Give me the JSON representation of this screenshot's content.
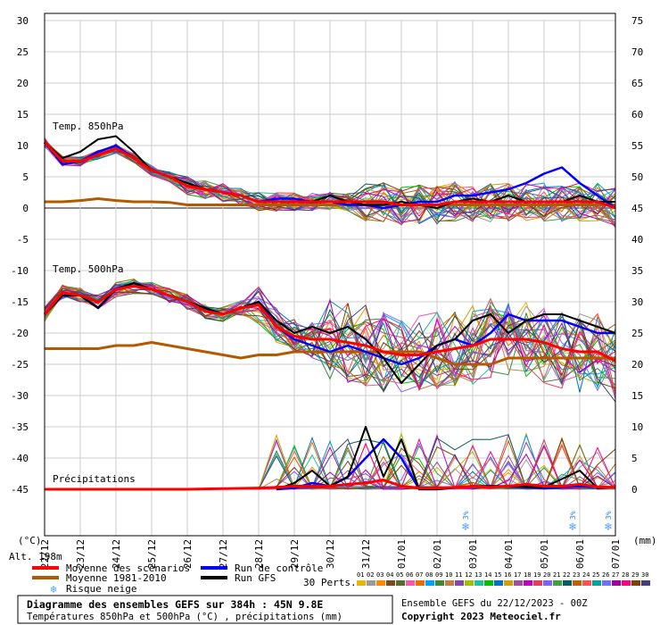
{
  "chart_data": {
    "type": "line",
    "title": "Diagramme des ensembles GEFS sur 384h : 45N 9.8E",
    "subtitle": "Températures 850hPa et 500hPa (°C) , précipitations (mm)",
    "run_label": "Ensemble GEFS du 22/12/2023 - 00Z",
    "copyright": "Copyright 2023 Meteociel.fr",
    "altitude": "Alt. 198m",
    "left_unit": "(°C)",
    "right_unit": "(mm)",
    "left_axis": {
      "ticks": [
        30,
        25,
        20,
        15,
        10,
        5,
        0,
        -5,
        -10,
        -15,
        -20,
        -25,
        -30,
        -35,
        -40,
        -45
      ],
      "ylim": [
        -45,
        30
      ]
    },
    "right_axis": {
      "ticks": [
        75,
        70,
        65,
        60,
        55,
        50,
        45,
        40,
        35,
        30,
        25,
        20,
        15,
        10,
        5,
        0
      ],
      "ylim": [
        0,
        75
      ]
    },
    "x_dates": [
      "22/12",
      "23/12",
      "24/12",
      "25/12",
      "26/12",
      "27/12",
      "28/12",
      "29/12",
      "30/12",
      "31/12",
      "01/01",
      "02/01",
      "03/01",
      "04/01",
      "05/01",
      "06/01",
      "07/01"
    ],
    "panel_labels": [
      "Temp. 850hPa",
      "Temp. 500hPa",
      "Précipitations"
    ],
    "snow_risk": [
      {
        "date": "03/01",
        "label": "3%"
      },
      {
        "date": "06/01",
        "label": "3%"
      },
      {
        "date": "07/01",
        "label": "3%"
      }
    ],
    "legend": [
      {
        "label": "Moyenne des scénarios",
        "color": "#ff0000"
      },
      {
        "label": "Moyenne 1981-2010",
        "color": "#b35a00"
      },
      {
        "label": "Risque neige",
        "color": "#4aa3ff"
      },
      {
        "label": "Run de contrôle",
        "color": "#0000ff"
      },
      {
        "label": "Run GFS",
        "color": "#000000"
      }
    ],
    "perts_label": "30 Perts.",
    "perturbations": [
      "01",
      "02",
      "03",
      "04",
      "05",
      "06",
      "07",
      "08",
      "09",
      "10",
      "11",
      "12",
      "13",
      "14",
      "15",
      "16",
      "17",
      "18",
      "19",
      "20",
      "21",
      "22",
      "23",
      "24",
      "25",
      "26",
      "27",
      "28",
      "29",
      "30"
    ],
    "pert_colors": [
      "#e8b800",
      "#9a9a9a",
      "#ff8a00",
      "#7b4a1e",
      "#5b6b2c",
      "#ff55aa",
      "#e86c00",
      "#00a0ff",
      "#3a8a3a",
      "#c08040",
      "#8844aa",
      "#a0c000",
      "#20c0a0",
      "#00c000",
      "#0070c0",
      "#d0a000",
      "#a050a0",
      "#c000c0",
      "#e04060",
      "#8060ff",
      "#40a040",
      "#006060",
      "#c06000",
      "#ff5050",
      "#00a0a0",
      "#7070ff",
      "#a000a0",
      "#ff0080",
      "#804000",
      "#404080"
    ],
    "series": {
      "t850_mean": [
        [
          0,
          10.5
        ],
        [
          0.5,
          7.5
        ],
        [
          1,
          7.5
        ],
        [
          1.5,
          8.5
        ],
        [
          2,
          9.5
        ],
        [
          2.5,
          8
        ],
        [
          3,
          6
        ],
        [
          3.5,
          5
        ],
        [
          4,
          3.5
        ],
        [
          4.5,
          3
        ],
        [
          5,
          2.5
        ],
        [
          5.5,
          2
        ],
        [
          6,
          1
        ],
        [
          6.5,
          1
        ],
        [
          7,
          1
        ],
        [
          7.5,
          1
        ],
        [
          8,
          1
        ],
        [
          8.5,
          1
        ],
        [
          9,
          1
        ],
        [
          9.5,
          1
        ],
        [
          10,
          0.5
        ],
        [
          10.5,
          0.5
        ],
        [
          11,
          0.5
        ],
        [
          11.5,
          1
        ],
        [
          12,
          1
        ],
        [
          12.5,
          1
        ],
        [
          13,
          1
        ],
        [
          13.5,
          1
        ],
        [
          14,
          1
        ],
        [
          14.5,
          1
        ],
        [
          15,
          1
        ],
        [
          15.5,
          1
        ],
        [
          16,
          0
        ]
      ],
      "t850_clim": [
        [
          0,
          1
        ],
        [
          0.5,
          1
        ],
        [
          1,
          1.2
        ],
        [
          1.5,
          1.5
        ],
        [
          2,
          1.2
        ],
        [
          2.5,
          1
        ],
        [
          3,
          1
        ],
        [
          3.5,
          0.9
        ],
        [
          4,
          0.5
        ],
        [
          4.5,
          0.5
        ],
        [
          5,
          0.5
        ],
        [
          5.5,
          0.5
        ],
        [
          6,
          0.5
        ],
        [
          6.5,
          0.5
        ],
        [
          7,
          0.5
        ],
        [
          7.5,
          0.5
        ],
        [
          8,
          0.5
        ],
        [
          8.5,
          0.5
        ],
        [
          9,
          0.5
        ],
        [
          9.5,
          0.5
        ],
        [
          10,
          0.5
        ],
        [
          10.5,
          0.5
        ],
        [
          11,
          0.5
        ],
        [
          11.5,
          0.5
        ],
        [
          12,
          0.5
        ],
        [
          12.5,
          0.5
        ],
        [
          13,
          0.5
        ],
        [
          13.5,
          0.5
        ],
        [
          14,
          0.5
        ],
        [
          14.5,
          0.5
        ],
        [
          15,
          0.5
        ],
        [
          15.5,
          0.5
        ],
        [
          16,
          0.5
        ]
      ],
      "t850_control": [
        [
          0,
          10.5
        ],
        [
          0.5,
          7
        ],
        [
          1,
          7.5
        ],
        [
          1.5,
          9
        ],
        [
          2,
          10
        ],
        [
          2.5,
          8
        ],
        [
          3,
          6
        ],
        [
          3.5,
          5
        ],
        [
          4,
          3.5
        ],
        [
          4.5,
          3
        ],
        [
          5,
          2.5
        ],
        [
          5.5,
          2
        ],
        [
          6,
          1
        ],
        [
          6.5,
          1.5
        ],
        [
          7,
          1.5
        ],
        [
          7.5,
          1
        ],
        [
          8,
          1
        ],
        [
          8.5,
          0.5
        ],
        [
          9,
          0.5
        ],
        [
          9.5,
          0
        ],
        [
          10,
          0.5
        ],
        [
          10.5,
          1
        ],
        [
          11,
          1
        ],
        [
          11.5,
          2
        ],
        [
          12,
          2
        ],
        [
          12.5,
          2.5
        ],
        [
          13,
          3
        ],
        [
          13.5,
          4
        ],
        [
          14,
          5.5
        ],
        [
          14.5,
          6.5
        ],
        [
          15,
          4
        ],
        [
          15.5,
          2
        ],
        [
          16,
          0
        ]
      ],
      "t850_gfs": [
        [
          0,
          10.5
        ],
        [
          0.5,
          8
        ],
        [
          1,
          9
        ],
        [
          1.5,
          11
        ],
        [
          2,
          11.5
        ],
        [
          2.5,
          9
        ],
        [
          3,
          6
        ],
        [
          3.5,
          5
        ],
        [
          4,
          4
        ],
        [
          4.5,
          3
        ],
        [
          5,
          2.5
        ],
        [
          5.5,
          2
        ],
        [
          6,
          1
        ],
        [
          6.5,
          1
        ],
        [
          7,
          1
        ],
        [
          7.5,
          1
        ],
        [
          8,
          2
        ],
        [
          8.5,
          1
        ],
        [
          9,
          0.5
        ],
        [
          9.5,
          0.5
        ],
        [
          10,
          1
        ],
        [
          10.5,
          0.5
        ],
        [
          11,
          0
        ],
        [
          11.5,
          1
        ],
        [
          12,
          1.5
        ],
        [
          12.5,
          1
        ],
        [
          13,
          2
        ],
        [
          13.5,
          1
        ],
        [
          14,
          1
        ],
        [
          14.5,
          1
        ],
        [
          15,
          2
        ],
        [
          15.5,
          1
        ],
        [
          16,
          1
        ]
      ],
      "t500_mean": [
        [
          0,
          -17
        ],
        [
          0.5,
          -13.5
        ],
        [
          1,
          -14
        ],
        [
          1.5,
          -15
        ],
        [
          2,
          -13
        ],
        [
          2.5,
          -12.5
        ],
        [
          3,
          -13
        ],
        [
          3.5,
          -14
        ],
        [
          4,
          -15
        ],
        [
          4.5,
          -16.5
        ],
        [
          5,
          -17
        ],
        [
          5.5,
          -16
        ],
        [
          6,
          -15.5
        ],
        [
          6.5,
          -19
        ],
        [
          7,
          -20.5
        ],
        [
          7.5,
          -21
        ],
        [
          8,
          -21
        ],
        [
          8.5,
          -21.5
        ],
        [
          9,
          -22
        ],
        [
          9.5,
          -23
        ],
        [
          10,
          -23.5
        ],
        [
          10.5,
          -23.5
        ],
        [
          11,
          -23
        ],
        [
          11.5,
          -22.5
        ],
        [
          12,
          -22
        ],
        [
          12.5,
          -21
        ],
        [
          13,
          -21
        ],
        [
          13.5,
          -21
        ],
        [
          14,
          -21.5
        ],
        [
          14.5,
          -22.5
        ],
        [
          15,
          -23
        ],
        [
          15.5,
          -23
        ],
        [
          16,
          -24.5
        ]
      ],
      "t500_clim": [
        [
          0,
          -22.5
        ],
        [
          0.5,
          -22.5
        ],
        [
          1,
          -22.5
        ],
        [
          1.5,
          -22.5
        ],
        [
          2,
          -22
        ],
        [
          2.5,
          -22
        ],
        [
          3,
          -21.5
        ],
        [
          3.5,
          -22
        ],
        [
          4,
          -22.5
        ],
        [
          4.5,
          -23
        ],
        [
          5,
          -23.5
        ],
        [
          5.5,
          -24
        ],
        [
          6,
          -23.5
        ],
        [
          6.5,
          -23.5
        ],
        [
          7,
          -23
        ],
        [
          7.5,
          -23
        ],
        [
          8,
          -23
        ],
        [
          8.5,
          -23
        ],
        [
          9,
          -23
        ],
        [
          9.5,
          -23
        ],
        [
          10,
          -23
        ],
        [
          10.5,
          -23
        ],
        [
          11,
          -24
        ],
        [
          11.5,
          -25
        ],
        [
          12,
          -25
        ],
        [
          12.5,
          -25
        ],
        [
          13,
          -24
        ],
        [
          13.5,
          -24
        ],
        [
          14,
          -24
        ],
        [
          14.5,
          -24
        ],
        [
          15,
          -24
        ],
        [
          15.5,
          -24
        ],
        [
          16,
          -24
        ]
      ],
      "t500_control": [
        [
          0,
          -17
        ],
        [
          0.5,
          -14
        ],
        [
          1,
          -14
        ],
        [
          1.5,
          -16
        ],
        [
          2,
          -13
        ],
        [
          2.5,
          -12
        ],
        [
          3,
          -13
        ],
        [
          3.5,
          -14
        ],
        [
          4,
          -15
        ],
        [
          4.5,
          -16
        ],
        [
          5,
          -17
        ],
        [
          5.5,
          -16
        ],
        [
          6,
          -15
        ],
        [
          6.5,
          -19
        ],
        [
          7,
          -21
        ],
        [
          7.5,
          -22
        ],
        [
          8,
          -23
        ],
        [
          8.5,
          -22
        ],
        [
          9,
          -23
        ],
        [
          9.5,
          -24
        ],
        [
          10,
          -25
        ],
        [
          10.5,
          -24
        ],
        [
          11,
          -22
        ],
        [
          11.5,
          -21
        ],
        [
          12,
          -22
        ],
        [
          12.5,
          -20
        ],
        [
          13,
          -17
        ],
        [
          13.5,
          -18
        ],
        [
          14,
          -18
        ],
        [
          14.5,
          -18
        ],
        [
          15,
          -19
        ],
        [
          15.5,
          -20
        ],
        [
          16,
          -20
        ]
      ],
      "t500_gfs": [
        [
          0,
          -17
        ],
        [
          0.5,
          -14
        ],
        [
          1,
          -14
        ],
        [
          1.5,
          -16
        ],
        [
          2,
          -13
        ],
        [
          2.5,
          -12
        ],
        [
          3,
          -13
        ],
        [
          3.5,
          -14
        ],
        [
          4,
          -15
        ],
        [
          4.5,
          -16
        ],
        [
          5,
          -17
        ],
        [
          5.5,
          -16
        ],
        [
          6,
          -15
        ],
        [
          6.5,
          -18
        ],
        [
          7,
          -20
        ],
        [
          7.5,
          -19
        ],
        [
          8,
          -20
        ],
        [
          8.5,
          -19
        ],
        [
          9,
          -21
        ],
        [
          9.5,
          -24
        ],
        [
          10,
          -28
        ],
        [
          10.5,
          -25
        ],
        [
          11,
          -22
        ],
        [
          11.5,
          -21
        ],
        [
          12,
          -18
        ],
        [
          12.5,
          -17
        ],
        [
          13,
          -20
        ],
        [
          13.5,
          -18
        ],
        [
          14,
          -17
        ],
        [
          14.5,
          -17
        ],
        [
          15,
          -18
        ],
        [
          15.5,
          -19
        ],
        [
          16,
          -20
        ]
      ],
      "prec_mean": [
        [
          0,
          0
        ],
        [
          1,
          0
        ],
        [
          2,
          0
        ],
        [
          3,
          0
        ],
        [
          4,
          0
        ],
        [
          5,
          0.1
        ],
        [
          6,
          0.2
        ],
        [
          6.5,
          0.3
        ],
        [
          7,
          0.5
        ],
        [
          7.5,
          0.5
        ],
        [
          8,
          0.5
        ],
        [
          8.5,
          0.8
        ],
        [
          9,
          1
        ],
        [
          9.5,
          1.5
        ],
        [
          10,
          0.5
        ],
        [
          10.5,
          0.2
        ],
        [
          11,
          0.2
        ],
        [
          11.5,
          0.3
        ],
        [
          12,
          0.5
        ],
        [
          12.5,
          0.3
        ],
        [
          13,
          0.5
        ],
        [
          13.5,
          0.8
        ],
        [
          14,
          0.5
        ],
        [
          14.5,
          0.5
        ],
        [
          15,
          0.8
        ],
        [
          15.5,
          0.4
        ],
        [
          16,
          0.3
        ]
      ],
      "prec_control": [
        [
          6.5,
          0
        ],
        [
          7,
          0.2
        ],
        [
          7.5,
          1
        ],
        [
          8,
          0.5
        ],
        [
          8.5,
          2
        ],
        [
          9,
          5
        ],
        [
          9.5,
          8
        ],
        [
          10,
          5
        ],
        [
          10.5,
          0
        ],
        [
          11,
          0
        ],
        [
          12,
          0.5
        ],
        [
          13,
          0.5
        ],
        [
          14,
          0.2
        ],
        [
          15,
          0.5
        ],
        [
          16,
          0.3
        ]
      ],
      "prec_gfs": [
        [
          6.5,
          0
        ],
        [
          7,
          1
        ],
        [
          7.5,
          3
        ],
        [
          8,
          0.5
        ],
        [
          8.5,
          2
        ],
        [
          9,
          10
        ],
        [
          9.5,
          2
        ],
        [
          10,
          8
        ],
        [
          10.5,
          0
        ],
        [
          11,
          0
        ],
        [
          12,
          0.5
        ],
        [
          13,
          0.5
        ],
        [
          14,
          0.3
        ],
        [
          15,
          3
        ],
        [
          15.5,
          0.2
        ],
        [
          16,
          0.3
        ]
      ]
    }
  }
}
